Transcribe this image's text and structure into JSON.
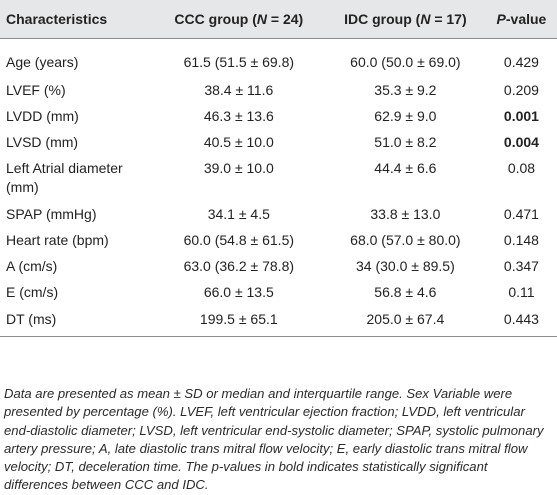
{
  "table": {
    "headers": {
      "characteristics": "Characteristics",
      "ccc_prefix": "CCC group (",
      "ccc_n": "N",
      "ccc_suffix": " = 24)",
      "idc_prefix": "IDC group (",
      "idc_n": "N",
      "idc_suffix": " = 17)",
      "p_value": "P",
      "p_value_suffix": "-value"
    },
    "rows": [
      {
        "characteristic": "Age (years)",
        "ccc": "61.5 (51.5 ± 69.8)",
        "idc": "60.0 (50.0 ± 69.0)",
        "p": "0.429"
      },
      {
        "characteristic": "LVEF (%)",
        "ccc": "38.4 ± 11.6",
        "idc": "35.3 ± 9.2",
        "p": "0.209"
      },
      {
        "characteristic": "LVDD (mm)",
        "ccc": "46.3 ± 13.6",
        "idc": "62.9 ± 9.0",
        "p": "0.001"
      },
      {
        "characteristic": "LVSD (mm)",
        "ccc": "40.5 ± 10.0",
        "idc": "51.0 ± 8.2",
        "p": "0.004"
      },
      {
        "characteristic": "Left Atrial diameter (mm)",
        "ccc": "39.0 ± 10.0",
        "idc": "44.4 ± 6.6",
        "p": "0.08"
      },
      {
        "characteristic": "SPAP (mmHg)",
        "ccc": "34.1 ± 4.5",
        "idc": "33.8 ± 13.0",
        "p": "0.471"
      },
      {
        "characteristic": "Heart rate (bpm)",
        "ccc": "60.0 (54.8 ± 61.5)",
        "idc": "68.0 (57.0 ± 80.0)",
        "p": "0.148"
      },
      {
        "characteristic": "A (cm/s)",
        "ccc": "63.0 (36.2 ± 78.8)",
        "idc": "34 (30.0 ± 89.5)",
        "p": "0.347"
      },
      {
        "characteristic": "E (cm/s)",
        "ccc": "66.0 ± 13.5",
        "idc": "56.8 ± 4.6",
        "p": "0.11"
      },
      {
        "characteristic": "DT (ms)",
        "ccc": "199.5 ± 65.1",
        "idc": "205.0 ± 67.4",
        "p": "0.443"
      }
    ]
  },
  "footnote": "Data are presented as mean ± SD or median and interquartile range. Sex Variable were presented by percentage (%). LVEF, left ventricular ejection fraction; LVDD, left ventricular end-diastolic diameter; LVSD, left ventricular end-systolic diameter; SPAP, systolic pulmonary artery pressure; A, late diastolic trans mitral flow velocity; E, early diastolic trans mitral flow velocity; DT, deceleration time. The p-values in bold indicates statistically significant differences between CCC and IDC."
}
